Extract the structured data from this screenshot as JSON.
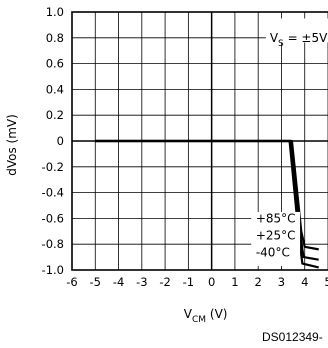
{
  "chart_data": {
    "type": "line",
    "xlabel": "V",
    "xlabel_sub": "CM",
    "xlabel_unit": "(V)",
    "ylabel": "dVos (mV)",
    "xlim": [
      -6,
      5
    ],
    "ylim": [
      -1.0,
      1.0
    ],
    "x_ticks": [
      "-6",
      "-5",
      "-4",
      "-3",
      "-2",
      "-1",
      "0",
      "1",
      "2",
      "3",
      "4",
      "5"
    ],
    "y_ticks": [
      "1.0",
      "0.8",
      "0.6",
      "0.4",
      "0.2",
      "0",
      "-0.2",
      "-0.4",
      "-0.6",
      "-0.8",
      "-1.0"
    ],
    "grid": true,
    "condition": {
      "prefix": "V",
      "sub": "S",
      "value": "= ±5V"
    },
    "series": [
      {
        "name": "+85°C",
        "x": [
          -5,
          3.2,
          3.45,
          3.85,
          4.0,
          4.6
        ],
        "y": [
          0,
          0,
          0,
          -0.7,
          -0.82,
          -0.84
        ]
      },
      {
        "name": "+25°C",
        "x": [
          -5,
          3.2,
          3.4,
          3.8,
          3.95,
          4.6
        ],
        "y": [
          0,
          0,
          0,
          -0.72,
          -0.9,
          -0.92
        ]
      },
      {
        "name": "-40°C",
        "x": [
          -5,
          3.2,
          3.35,
          3.75,
          3.9,
          4.6
        ],
        "y": [
          0,
          0,
          0,
          -0.75,
          -0.95,
          -0.98
        ]
      }
    ],
    "legend_entries": [
      "+85°C",
      "+25°C",
      "-40°C"
    ],
    "legend_position": "bottom-right"
  },
  "footer_code": "DS012349-"
}
